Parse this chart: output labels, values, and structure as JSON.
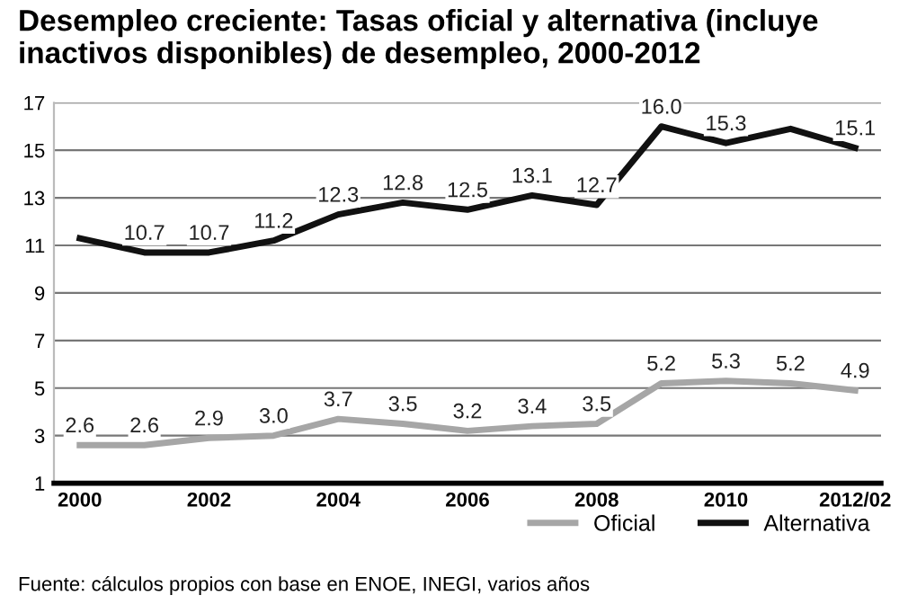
{
  "chart_data": {
    "type": "line",
    "title": "Desempleo creciente: Tasas oficial y alternativa (incluye inactivos disponibles) de desempleo, 2000-2012",
    "categories": [
      "2000",
      null,
      "2002",
      null,
      "2004",
      null,
      "2006",
      null,
      "2008",
      null,
      "2010",
      null,
      "2012/02"
    ],
    "series": [
      {
        "name": "Oficial",
        "color": "#a6a6a6",
        "values": [
          2.6,
          2.6,
          2.9,
          3.0,
          3.7,
          3.5,
          3.2,
          3.4,
          3.5,
          5.2,
          5.3,
          5.2,
          4.9
        ],
        "value_labels": [
          "2.6",
          "2.6",
          "2.9",
          "3.0",
          "3.7",
          "3.5",
          "3.2",
          "3.4",
          "3.5",
          "5.2",
          "5.3",
          "5.2",
          "4.9"
        ]
      },
      {
        "name": "Alternativa",
        "color": "#111111",
        "values": [
          11.3,
          10.7,
          10.7,
          11.2,
          12.3,
          12.8,
          12.5,
          13.1,
          12.7,
          16.0,
          15.3,
          15.9,
          15.1
        ],
        "value_labels": [
          null,
          "10.7",
          "10.7",
          "11.2",
          "12.3",
          "12.8",
          "12.5",
          "13.1",
          "12.7",
          "16.0",
          "15.3",
          null,
          "15.1"
        ]
      }
    ],
    "ylim": [
      1,
      17
    ],
    "yticks": [
      1,
      3,
      5,
      7,
      9,
      11,
      13,
      15,
      17
    ],
    "grid": "y",
    "legend": "bottom right",
    "marker": "none",
    "line_style": "solid",
    "annotations": [
      "Fuente: cálculos propios con base en ENOE, INEGI, varios años"
    ]
  }
}
